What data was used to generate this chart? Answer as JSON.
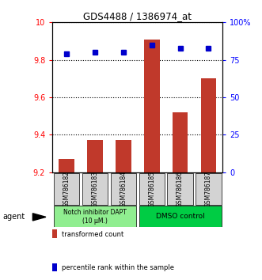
{
  "title": "GDS4488 / 1386974_at",
  "samples": [
    "GSM786182",
    "GSM786183",
    "GSM786184",
    "GSM786185",
    "GSM786186",
    "GSM786187"
  ],
  "bar_values": [
    9.27,
    9.37,
    9.37,
    9.91,
    9.52,
    9.7
  ],
  "percentile_values": [
    79,
    80,
    80,
    85,
    83,
    83
  ],
  "ylim_left": [
    9.2,
    10.0
  ],
  "ylim_right": [
    0,
    100
  ],
  "yticks_left": [
    9.2,
    9.4,
    9.6,
    9.8,
    10.0
  ],
  "ytick_labels_left": [
    "9.2",
    "9.4",
    "9.6",
    "9.8",
    "10"
  ],
  "yticks_right": [
    0,
    25,
    50,
    75,
    100
  ],
  "ytick_labels_right": [
    "0",
    "25",
    "50",
    "75",
    "100%"
  ],
  "bar_color": "#c0392b",
  "dot_color": "#0000cc",
  "group1_label": "Notch inhibitor DAPT\n(10 μM.)",
  "group2_label": "DMSO control",
  "group1_color": "#90ee90",
  "group2_color": "#00cc44",
  "agent_label": "agent",
  "legend1_label": "transformed count",
  "legend2_label": "percentile rank within the sample",
  "grid_lines": [
    9.4,
    9.6,
    9.8,
    10.0
  ]
}
